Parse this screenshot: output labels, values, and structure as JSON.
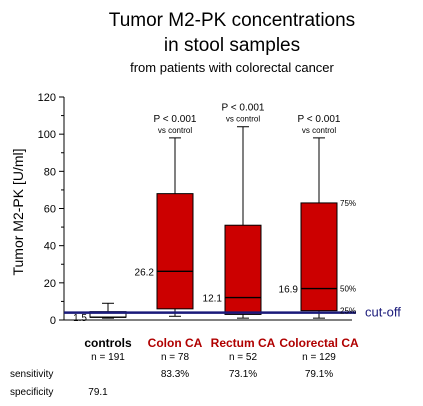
{
  "chart_data": {
    "type": "boxplot",
    "title_line1": "Tumor M2-PK concentrations",
    "title_line2": "in stool samples",
    "subtitle": "from patients with colorectal cancer",
    "ylabel": "Tumor M2-PK   [U/ml]",
    "ylim": [
      0,
      120
    ],
    "yticks": [
      0,
      20,
      40,
      60,
      80,
      100,
      120
    ],
    "cutoff_value": 4,
    "cutoff_label": "cut-off",
    "colors": {
      "box_controls": "#ffffff",
      "box_cancer": "#cc0000",
      "cutoff": "#1a1a7a",
      "label_cancer": "#b00000"
    },
    "groups": [
      {
        "name": "controls",
        "n": "n = 191",
        "min": 1,
        "q1": 1.5,
        "median": 1.5,
        "q3": 4.5,
        "max": 9,
        "median_label": "1.5",
        "p_label": "",
        "p_label2": "",
        "sensitivity": "",
        "specificity": "79.1"
      },
      {
        "name": "Colon CA",
        "n": "n = 78",
        "min": 2,
        "q1": 6,
        "median": 26.2,
        "q3": 68,
        "max": 98,
        "median_label": "26.2",
        "p_label": "P < 0.001",
        "p_label2": "vs control",
        "sensitivity": "83.3%",
        "specificity": ""
      },
      {
        "name": "Rectum CA",
        "n": "n = 52",
        "min": 1,
        "q1": 3,
        "median": 12.1,
        "q3": 51,
        "max": 104,
        "median_label": "12.1",
        "p_label": "P < 0.001",
        "p_label2": "vs control",
        "sensitivity": "73.1%",
        "specificity": ""
      },
      {
        "name": "Colorectal CA",
        "n": "n = 129",
        "min": 1,
        "q1": 5,
        "median": 16.9,
        "q3": 63,
        "max": 98,
        "median_label": "16.9",
        "p_label": "P < 0.001",
        "p_label2": "vs control",
        "sensitivity": "79.1%",
        "specificity": ""
      }
    ],
    "percentile_labels": [
      "75%",
      "50%",
      "25%"
    ],
    "row_labels": {
      "sensitivity": "sensitivity",
      "specificity": "specificity"
    }
  }
}
